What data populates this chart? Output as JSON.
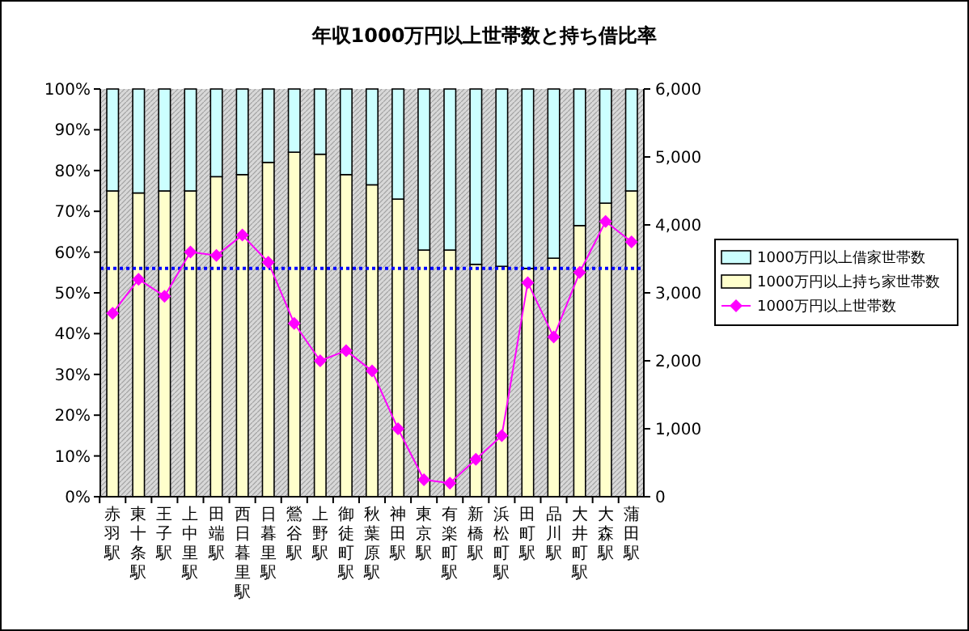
{
  "chart_data": {
    "type": "bar",
    "title": "年収1000万円以上世帯数と持ち借比率",
    "categories": [
      "赤羽駅",
      "東十条駅",
      "王子駅",
      "上中里駅",
      "田端駅",
      "西日暮里駅",
      "日暮里駅",
      "鶯谷駅",
      "上野駅",
      "御徒町駅",
      "秋葉原駅",
      "神田駅",
      "東京駅",
      "有楽町駅",
      "新橋駅",
      "浜松町駅",
      "田町駅",
      "品川駅",
      "大井町駅",
      "大森駅",
      "蒲田駅"
    ],
    "stacked": true,
    "series": [
      {
        "name": "1000万円以上持ち家世帯数",
        "color": "#ffffcc",
        "values": [
          75,
          74.5,
          75,
          75,
          78.5,
          79,
          82,
          84.5,
          84,
          79,
          76.5,
          73,
          60.5,
          60.5,
          57,
          56.5,
          56,
          58.5,
          66.5,
          72,
          75
        ]
      },
      {
        "name": "1000万円以上借家世帯数",
        "color": "#ccffff",
        "values": [
          25,
          25.5,
          25,
          25,
          21.5,
          21,
          18,
          15.5,
          16,
          21,
          23.5,
          27,
          39.5,
          39.5,
          43,
          43.5,
          44,
          41.5,
          33.5,
          28,
          25
        ]
      },
      {
        "name": "1000万円以上世帯数",
        "type": "line",
        "axis": "y2",
        "color": "#ff00ff",
        "marker": "diamond",
        "values": [
          2700,
          3200,
          2950,
          3600,
          3550,
          3850,
          3450,
          2550,
          2000,
          2150,
          1850,
          1000,
          250,
          200,
          550,
          900,
          3150,
          2350,
          3300,
          4050,
          3750
        ]
      }
    ],
    "ylim": [
      0,
      100
    ],
    "yticks": [
      {
        "value": 0,
        "label": "0%"
      },
      {
        "value": 10,
        "label": "10%"
      },
      {
        "value": 20,
        "label": "20%"
      },
      {
        "value": 30,
        "label": "30%"
      },
      {
        "value": 40,
        "label": "40%"
      },
      {
        "value": 50,
        "label": "50%"
      },
      {
        "value": 60,
        "label": "60%"
      },
      {
        "value": 70,
        "label": "70%"
      },
      {
        "value": 80,
        "label": "80%"
      },
      {
        "value": 90,
        "label": "90%"
      },
      {
        "value": 100,
        "label": "100%"
      }
    ],
    "y2lim": [
      0,
      6000
    ],
    "y2ticks": [
      0,
      {
        "value": 1000,
        "label": "1,000"
      },
      {
        "value": 2000,
        "label": "2,000"
      },
      {
        "value": 3000,
        "label": "3,000"
      },
      {
        "value": 4000,
        "label": "4,000"
      },
      {
        "value": 5000,
        "label": "5,000"
      },
      {
        "value": 6000,
        "label": "6,000"
      }
    ],
    "ref_lines": [
      {
        "axis": "y",
        "value": 56,
        "color": "#0000ff",
        "line_style": "dotted"
      }
    ],
    "grid": false,
    "legend": "right"
  }
}
